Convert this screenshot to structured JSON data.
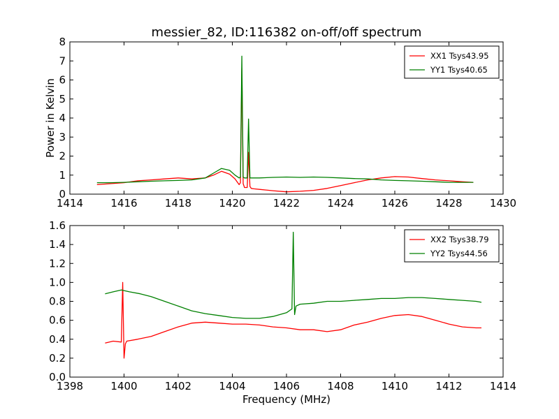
{
  "figure": {
    "title": "messier_82, ID:116382 on-off/off spectrum"
  },
  "chart_data": [
    {
      "type": "line",
      "title": "messier_82, ID:116382 on-off/off spectrum",
      "xlabel": "",
      "ylabel": "Power in Kelvin",
      "xlim": [
        1414,
        1430
      ],
      "ylim": [
        0,
        8
      ],
      "x_ticks": [
        "1414",
        "1416",
        "1418",
        "1420",
        "1422",
        "1424",
        "1426",
        "1428",
        "1430"
      ],
      "y_ticks": [
        "0",
        "1",
        "2",
        "3",
        "4",
        "5",
        "6",
        "7",
        "8"
      ],
      "grid": false,
      "legend_placement": "top-right",
      "series": [
        {
          "name": "XX1 Tsys43.95",
          "color": "#ff0000",
          "x": [
            1415.0,
            1415.5,
            1416.0,
            1416.5,
            1417.0,
            1417.5,
            1418.0,
            1418.5,
            1419.0,
            1419.3,
            1419.6,
            1419.9,
            1420.1,
            1420.25,
            1420.3,
            1420.35,
            1420.4,
            1420.45,
            1420.55,
            1420.6,
            1420.65,
            1420.7,
            1420.8,
            1421.0,
            1421.5,
            1422.0,
            1422.5,
            1423.0,
            1423.5,
            1424.0,
            1424.5,
            1425.0,
            1425.5,
            1426.0,
            1426.5,
            1427.0,
            1427.5,
            1428.0,
            1428.5,
            1428.9
          ],
          "y": [
            0.5,
            0.55,
            0.6,
            0.7,
            0.75,
            0.8,
            0.85,
            0.8,
            0.85,
            1.0,
            1.2,
            1.05,
            0.8,
            0.5,
            0.6,
            6.6,
            0.55,
            0.35,
            0.35,
            2.2,
            0.4,
            0.3,
            0.28,
            0.25,
            0.18,
            0.12,
            0.15,
            0.2,
            0.3,
            0.45,
            0.6,
            0.75,
            0.85,
            0.92,
            0.9,
            0.82,
            0.75,
            0.7,
            0.65,
            0.62
          ]
        },
        {
          "name": "YY1 Tsys40.65",
          "color": "#008000",
          "x": [
            1415.0,
            1415.5,
            1416.0,
            1416.5,
            1417.0,
            1417.5,
            1418.0,
            1418.5,
            1419.0,
            1419.3,
            1419.6,
            1419.9,
            1420.1,
            1420.25,
            1420.3,
            1420.35,
            1420.4,
            1420.45,
            1420.55,
            1420.6,
            1420.65,
            1420.7,
            1420.8,
            1421.0,
            1421.5,
            1422.0,
            1422.5,
            1423.0,
            1423.5,
            1424.0,
            1424.5,
            1425.0,
            1425.5,
            1426.0,
            1426.5,
            1427.0,
            1427.5,
            1428.0,
            1428.5,
            1428.9
          ],
          "y": [
            0.6,
            0.6,
            0.62,
            0.65,
            0.68,
            0.7,
            0.72,
            0.75,
            0.85,
            1.1,
            1.35,
            1.25,
            1.0,
            0.85,
            0.9,
            7.25,
            0.9,
            0.85,
            0.85,
            3.95,
            0.85,
            0.85,
            0.85,
            0.85,
            0.88,
            0.9,
            0.88,
            0.9,
            0.88,
            0.85,
            0.82,
            0.8,
            0.75,
            0.72,
            0.7,
            0.68,
            0.65,
            0.62,
            0.62,
            0.62
          ]
        }
      ]
    },
    {
      "type": "line",
      "title": "",
      "xlabel": "Frequency (MHz)",
      "ylabel": "",
      "xlim": [
        1398,
        1414
      ],
      "ylim": [
        0.0,
        1.6
      ],
      "x_ticks": [
        "1398",
        "1400",
        "1402",
        "1404",
        "1406",
        "1408",
        "1410",
        "1412",
        "1414"
      ],
      "y_ticks": [
        "0.0",
        "0.2",
        "0.4",
        "0.6",
        "0.8",
        "1.0",
        "1.2",
        "1.4",
        "1.6"
      ],
      "grid": false,
      "legend_placement": "top-right",
      "series": [
        {
          "name": "XX2 Tsys38.79",
          "color": "#ff0000",
          "x": [
            1399.3,
            1399.6,
            1399.9,
            1399.95,
            1400.0,
            1400.05,
            1400.1,
            1400.5,
            1401.0,
            1401.5,
            1402.0,
            1402.5,
            1403.0,
            1403.5,
            1404.0,
            1404.5,
            1405.0,
            1405.5,
            1406.0,
            1406.5,
            1407.0,
            1407.5,
            1408.0,
            1408.5,
            1409.0,
            1409.5,
            1410.0,
            1410.5,
            1411.0,
            1411.5,
            1412.0,
            1412.5,
            1413.0,
            1413.2
          ],
          "y": [
            0.36,
            0.38,
            0.37,
            1.0,
            0.2,
            0.35,
            0.38,
            0.4,
            0.43,
            0.48,
            0.53,
            0.57,
            0.58,
            0.57,
            0.56,
            0.56,
            0.55,
            0.53,
            0.52,
            0.5,
            0.5,
            0.48,
            0.5,
            0.55,
            0.58,
            0.62,
            0.65,
            0.66,
            0.64,
            0.6,
            0.56,
            0.53,
            0.52,
            0.52
          ]
        },
        {
          "name": "YY2 Tsys44.56",
          "color": "#008000",
          "x": [
            1399.3,
            1399.6,
            1399.9,
            1400.2,
            1400.6,
            1401.0,
            1401.5,
            1402.0,
            1402.5,
            1403.0,
            1403.5,
            1404.0,
            1404.5,
            1405.0,
            1405.5,
            1406.0,
            1406.2,
            1406.25,
            1406.3,
            1406.35,
            1406.5,
            1407.0,
            1407.5,
            1408.0,
            1408.5,
            1409.0,
            1409.5,
            1410.0,
            1410.5,
            1411.0,
            1411.5,
            1412.0,
            1412.5,
            1413.0,
            1413.2
          ],
          "y": [
            0.88,
            0.9,
            0.92,
            0.9,
            0.88,
            0.85,
            0.8,
            0.75,
            0.7,
            0.67,
            0.65,
            0.63,
            0.62,
            0.62,
            0.64,
            0.68,
            0.72,
            1.53,
            0.66,
            0.75,
            0.77,
            0.78,
            0.8,
            0.8,
            0.81,
            0.82,
            0.83,
            0.83,
            0.84,
            0.84,
            0.83,
            0.82,
            0.81,
            0.8,
            0.79
          ]
        }
      ]
    }
  ]
}
